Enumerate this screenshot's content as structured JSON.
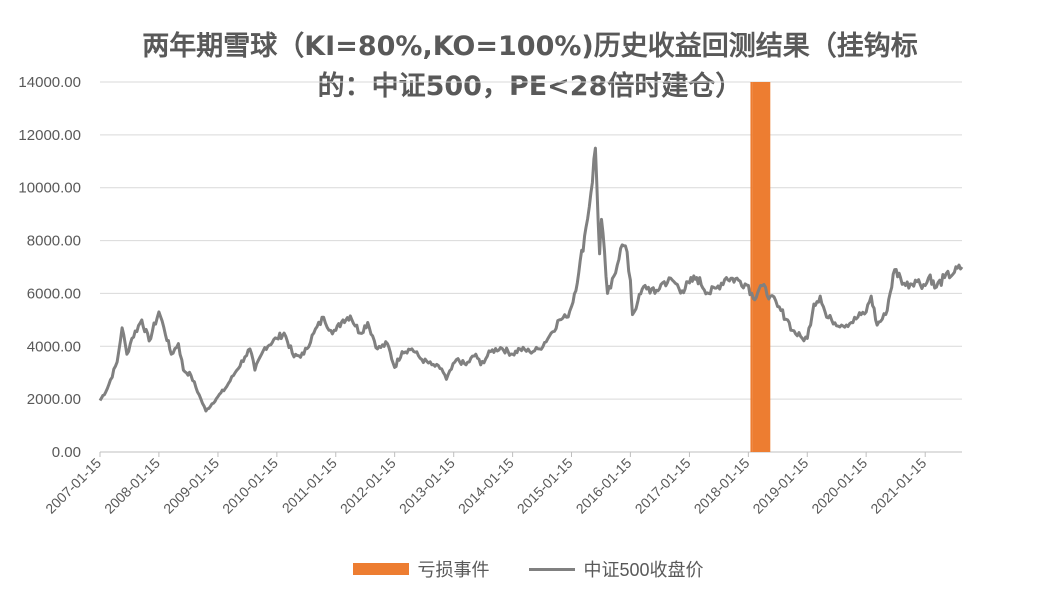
{
  "chart_data": {
    "type": "line",
    "title_line1": "两年期雪球（KI=80%,KO=100%)历史收益回测结果（挂钩标",
    "title_line2": "的：中证500，PE<28倍时建仓）",
    "ylim": [
      0,
      14000
    ],
    "y_ticks": [
      "0.00",
      "2000.00",
      "4000.00",
      "6000.00",
      "8000.00",
      "10000.00",
      "12000.00",
      "14000.00"
    ],
    "x_ticks": [
      "2007-01-15",
      "2008-01-15",
      "2009-01-15",
      "2010-01-15",
      "2011-01-15",
      "2012-01-15",
      "2013-01-15",
      "2014-01-15",
      "2015-01-15",
      "2016-01-15",
      "2017-01-15",
      "2018-01-15",
      "2019-01-15",
      "2020-01-15",
      "2021-01-15"
    ],
    "x_range": [
      "2007-01-15",
      "2021-08-31"
    ],
    "series": [
      {
        "name": "中证500收盘价",
        "color": "#808080",
        "points": [
          [
            "2007-01-15",
            1950
          ],
          [
            "2007-03-01",
            2400
          ],
          [
            "2007-05-01",
            3400
          ],
          [
            "2007-06-01",
            4700
          ],
          [
            "2007-07-01",
            3700
          ],
          [
            "2007-08-01",
            4300
          ],
          [
            "2007-10-01",
            5000
          ],
          [
            "2007-11-15",
            4200
          ],
          [
            "2008-01-15",
            5300
          ],
          [
            "2008-02-15",
            4700
          ],
          [
            "2008-04-01",
            3700
          ],
          [
            "2008-05-15",
            4100
          ],
          [
            "2008-06-15",
            3100
          ],
          [
            "2008-08-01",
            2900
          ],
          [
            "2008-10-01",
            2000
          ],
          [
            "2008-11-01",
            1550
          ],
          [
            "2009-01-15",
            2100
          ],
          [
            "2009-03-01",
            2400
          ],
          [
            "2009-05-01",
            3000
          ],
          [
            "2009-07-01",
            3600
          ],
          [
            "2009-08-01",
            3900
          ],
          [
            "2009-09-01",
            3100
          ],
          [
            "2009-11-01",
            3950
          ],
          [
            "2010-01-15",
            4300
          ],
          [
            "2010-03-01",
            4500
          ],
          [
            "2010-05-01",
            3600
          ],
          [
            "2010-07-01",
            3700
          ],
          [
            "2010-09-01",
            4500
          ],
          [
            "2010-11-01",
            5100
          ],
          [
            "2010-12-15",
            4600
          ],
          [
            "2011-01-15",
            4600
          ],
          [
            "2011-03-01",
            5000
          ],
          [
            "2011-04-15",
            5150
          ],
          [
            "2011-06-15",
            4500
          ],
          [
            "2011-08-01",
            4900
          ],
          [
            "2011-10-01",
            3900
          ],
          [
            "2011-12-01",
            4100
          ],
          [
            "2012-01-15",
            3200
          ],
          [
            "2012-03-01",
            3800
          ],
          [
            "2012-05-01",
            3900
          ],
          [
            "2012-07-01",
            3500
          ],
          [
            "2012-09-01",
            3300
          ],
          [
            "2012-11-01",
            3150
          ],
          [
            "2012-12-01",
            2750
          ],
          [
            "2013-02-01",
            3500
          ],
          [
            "2013-04-01",
            3300
          ],
          [
            "2013-06-01",
            3700
          ],
          [
            "2013-07-01",
            3300
          ],
          [
            "2013-09-01",
            3800
          ],
          [
            "2013-11-01",
            3950
          ],
          [
            "2014-01-15",
            3700
          ],
          [
            "2014-03-01",
            3900
          ],
          [
            "2014-05-01",
            3800
          ],
          [
            "2014-07-01",
            3900
          ],
          [
            "2014-09-01",
            4400
          ],
          [
            "2014-11-01",
            5000
          ],
          [
            "2014-12-15",
            5100
          ],
          [
            "2015-01-15",
            5500
          ],
          [
            "2015-03-01",
            6800
          ],
          [
            "2015-04-15",
            8500
          ],
          [
            "2015-05-15",
            9800
          ],
          [
            "2015-06-12",
            11500
          ],
          [
            "2015-07-08",
            7500
          ],
          [
            "2015-07-20",
            8800
          ],
          [
            "2015-08-26",
            6000
          ],
          [
            "2015-09-15",
            6200
          ],
          [
            "2015-11-15",
            7700
          ],
          [
            "2015-12-15",
            7800
          ],
          [
            "2016-01-15",
            6500
          ],
          [
            "2016-01-28",
            5200
          ],
          [
            "2016-03-01",
            5700
          ],
          [
            "2016-04-15",
            6300
          ],
          [
            "2016-06-15",
            6000
          ],
          [
            "2016-08-01",
            6400
          ],
          [
            "2016-10-01",
            6500
          ],
          [
            "2016-12-01",
            6100
          ],
          [
            "2017-01-15",
            6400
          ],
          [
            "2017-03-01",
            6600
          ],
          [
            "2017-05-15",
            6000
          ],
          [
            "2017-07-01",
            6200
          ],
          [
            "2017-09-01",
            6600
          ],
          [
            "2017-11-15",
            6500
          ],
          [
            "2018-01-15",
            6300
          ],
          [
            "2018-02-15",
            5800
          ],
          [
            "2018-04-01",
            6300
          ],
          [
            "2018-06-01",
            5900
          ],
          [
            "2018-07-15",
            5500
          ],
          [
            "2018-09-15",
            5000
          ],
          [
            "2018-10-15",
            4600
          ],
          [
            "2018-12-15",
            4300
          ],
          [
            "2019-01-15",
            4300
          ],
          [
            "2019-02-25",
            5600
          ],
          [
            "2019-04-05",
            5900
          ],
          [
            "2019-05-15",
            5100
          ],
          [
            "2019-06-15",
            5000
          ],
          [
            "2019-08-15",
            4800
          ],
          [
            "2019-10-15",
            4900
          ],
          [
            "2019-12-15",
            5200
          ],
          [
            "2020-01-15",
            5300
          ],
          [
            "2020-02-15",
            5900
          ],
          [
            "2020-03-23",
            4800
          ],
          [
            "2020-05-15",
            5200
          ],
          [
            "2020-07-10",
            6900
          ],
          [
            "2020-08-15",
            6600
          ],
          [
            "2020-09-15",
            6300
          ],
          [
            "2020-11-15",
            6500
          ],
          [
            "2021-01-15",
            6300
          ],
          [
            "2021-02-15",
            6700
          ],
          [
            "2021-03-15",
            6200
          ],
          [
            "2021-05-15",
            6600
          ],
          [
            "2021-07-15",
            6800
          ],
          [
            "2021-08-31",
            7000
          ]
        ]
      }
    ],
    "loss_events": {
      "name": "亏损事件",
      "color": "#ED7D31",
      "bars": [
        {
          "start": "2018-01-28",
          "end": "2018-02-05"
        },
        {
          "start": "2018-02-10",
          "end": "2018-05-31"
        }
      ]
    },
    "legend": [
      "亏损事件",
      "中证500收盘价"
    ],
    "legend_position": "bottom",
    "grid": true
  }
}
